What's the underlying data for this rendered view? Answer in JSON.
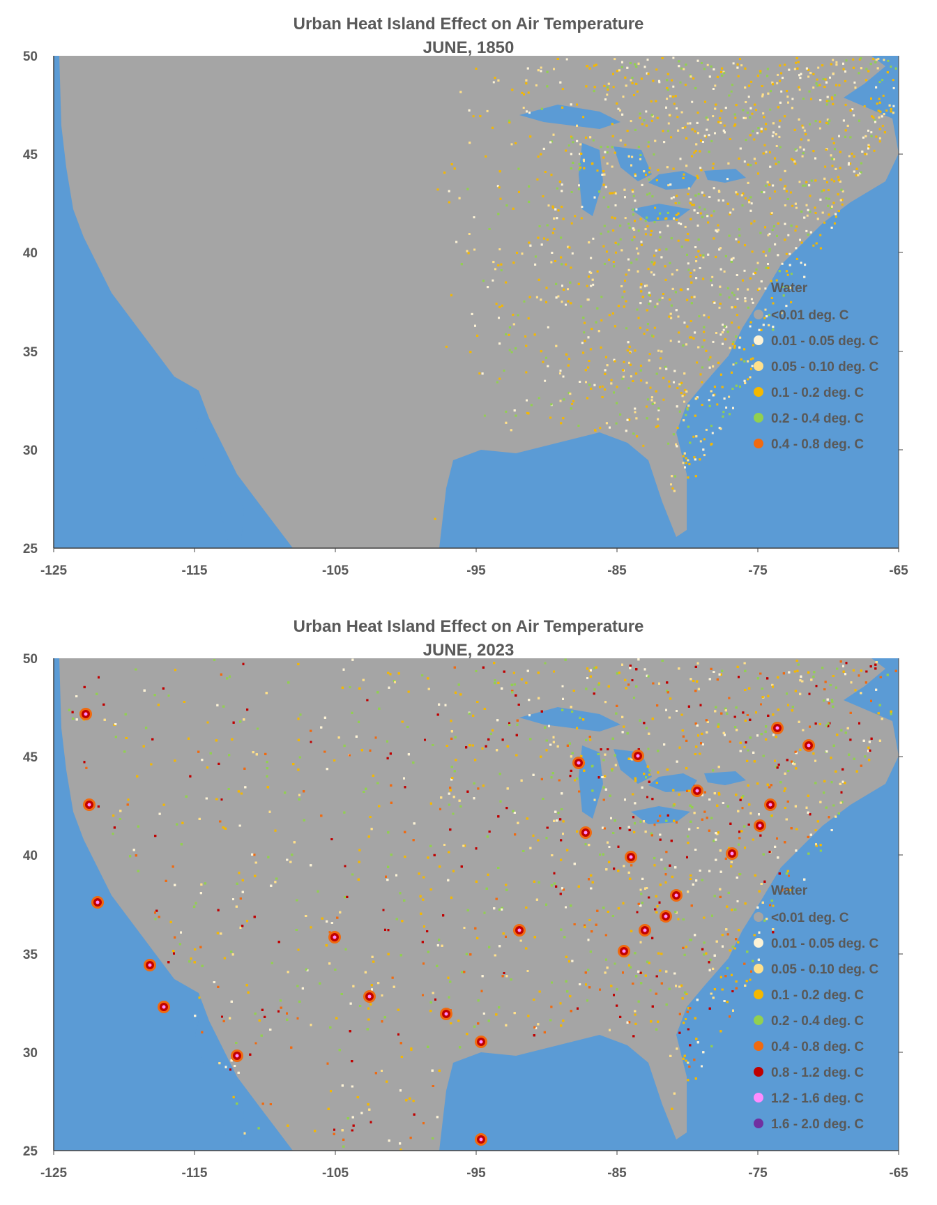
{
  "panels": [
    {
      "title": "Urban Heat Island Effect on Air Temperature",
      "subtitle": "JUNE, 1850",
      "x_ticks": [
        "-125",
        "-115",
        "-105",
        "-95",
        "-85",
        "-75",
        "-65"
      ],
      "y_ticks": [
        "50",
        "45",
        "40",
        "35",
        "30",
        "25"
      ],
      "legend": [
        {
          "label": "Water",
          "color": "#5b9bd5",
          "swatch": false
        },
        {
          "label": "<0.01 deg. C",
          "color": "#a5a5a5",
          "swatch": true
        },
        {
          "label": "0.01 - 0.05 deg. C",
          "color": "#fdf3d6",
          "swatch": true
        },
        {
          "label": "0.05 - 0.10 deg. C",
          "color": "#ffe08a",
          "swatch": true
        },
        {
          "label": "0.1 - 0.2 deg. C",
          "color": "#f5b800",
          "swatch": true
        },
        {
          "label": "0.2 - 0.4 deg. C",
          "color": "#92d050",
          "swatch": true
        },
        {
          "label": "0.4 - 0.8 deg. C",
          "color": "#f06a10",
          "swatch": true
        }
      ]
    },
    {
      "title": "Urban Heat Island Effect on Air Temperature",
      "subtitle": "JUNE, 2023",
      "x_ticks": [
        "-125",
        "-115",
        "-105",
        "-95",
        "-85",
        "-75",
        "-65"
      ],
      "y_ticks": [
        "50",
        "45",
        "40",
        "35",
        "30",
        "25"
      ],
      "legend": [
        {
          "label": "Water",
          "color": "#5b9bd5",
          "swatch": false
        },
        {
          "label": "<0.01 deg. C",
          "color": "#a5a5a5",
          "swatch": true
        },
        {
          "label": "0.01 - 0.05 deg. C",
          "color": "#fdf3d6",
          "swatch": true
        },
        {
          "label": "0.05 - 0.10 deg. C",
          "color": "#ffe08a",
          "swatch": true
        },
        {
          "label": "0.1 - 0.2 deg. C",
          "color": "#f5b800",
          "swatch": true
        },
        {
          "label": "0.2 - 0.4 deg. C",
          "color": "#92d050",
          "swatch": true
        },
        {
          "label": "0.4 - 0.8 deg. C",
          "color": "#f06a10",
          "swatch": true
        },
        {
          "label": "0.8 - 1.2 deg. C",
          "color": "#c00000",
          "swatch": true
        },
        {
          "label": "1.2 - 1.6 deg. C",
          "color": "#ff8cff",
          "swatch": true
        },
        {
          "label": "1.6 - 2.0 deg. C",
          "color": "#7030a0",
          "swatch": true
        }
      ]
    }
  ]
}
